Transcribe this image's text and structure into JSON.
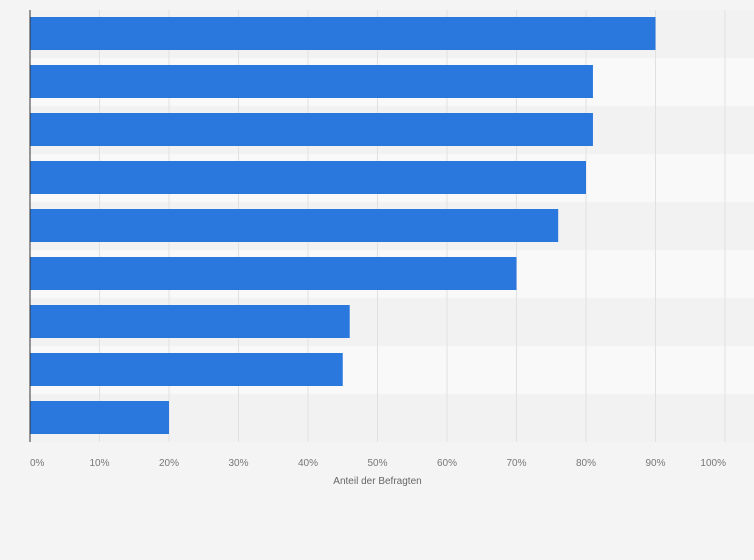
{
  "chart_data": {
    "type": "bar",
    "orientation": "horizontal",
    "categories": [
      "",
      "",
      "",
      "",
      "",
      "",
      "",
      "",
      ""
    ],
    "values": [
      90,
      81,
      81,
      80,
      76,
      70,
      46,
      45,
      20
    ],
    "xlabel": "Anteil der Befragten",
    "ylabel": "",
    "xlim": [
      0,
      100
    ],
    "x_ticks": [
      "0%",
      "10%",
      "20%",
      "30%",
      "40%",
      "50%",
      "60%",
      "70%",
      "80%",
      "90%",
      "100%"
    ],
    "grid": true,
    "bar_color": "#2a77de",
    "background_color": "#f4f4f4"
  }
}
